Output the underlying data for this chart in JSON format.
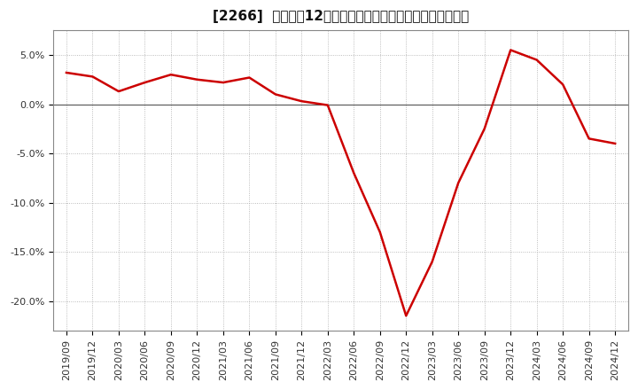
{
  "title": "[2266]  売上高の12か月移動合計の対前年同期増減率の推移",
  "x_labels": [
    "2019/09",
    "2019/12",
    "2020/03",
    "2020/06",
    "2020/09",
    "2020/12",
    "2021/03",
    "2021/06",
    "2021/09",
    "2021/12",
    "2022/03",
    "2022/06",
    "2022/09",
    "2022/12",
    "2023/03",
    "2023/06",
    "2023/09",
    "2023/12",
    "2024/03",
    "2024/06",
    "2024/09",
    "2024/12"
  ],
  "values": [
    3.2,
    2.8,
    1.3,
    2.2,
    3.0,
    2.5,
    2.2,
    2.7,
    1.0,
    0.3,
    -0.1,
    -7.0,
    -13.0,
    -21.5,
    -16.0,
    -8.0,
    -2.5,
    5.5,
    4.5,
    2.0,
    -3.5,
    -4.0
  ],
  "line_color": "#cc0000",
  "line_width": 1.8,
  "background_color": "#ffffff",
  "plot_bg_color": "#ffffff",
  "grid_color": "#aaaaaa",
  "ylim": [
    -23,
    7.5
  ],
  "yticks": [
    5.0,
    0.0,
    -5.0,
    -10.0,
    -15.0,
    -20.0
  ],
  "title_fontsize": 11,
  "tick_fontsize": 8
}
